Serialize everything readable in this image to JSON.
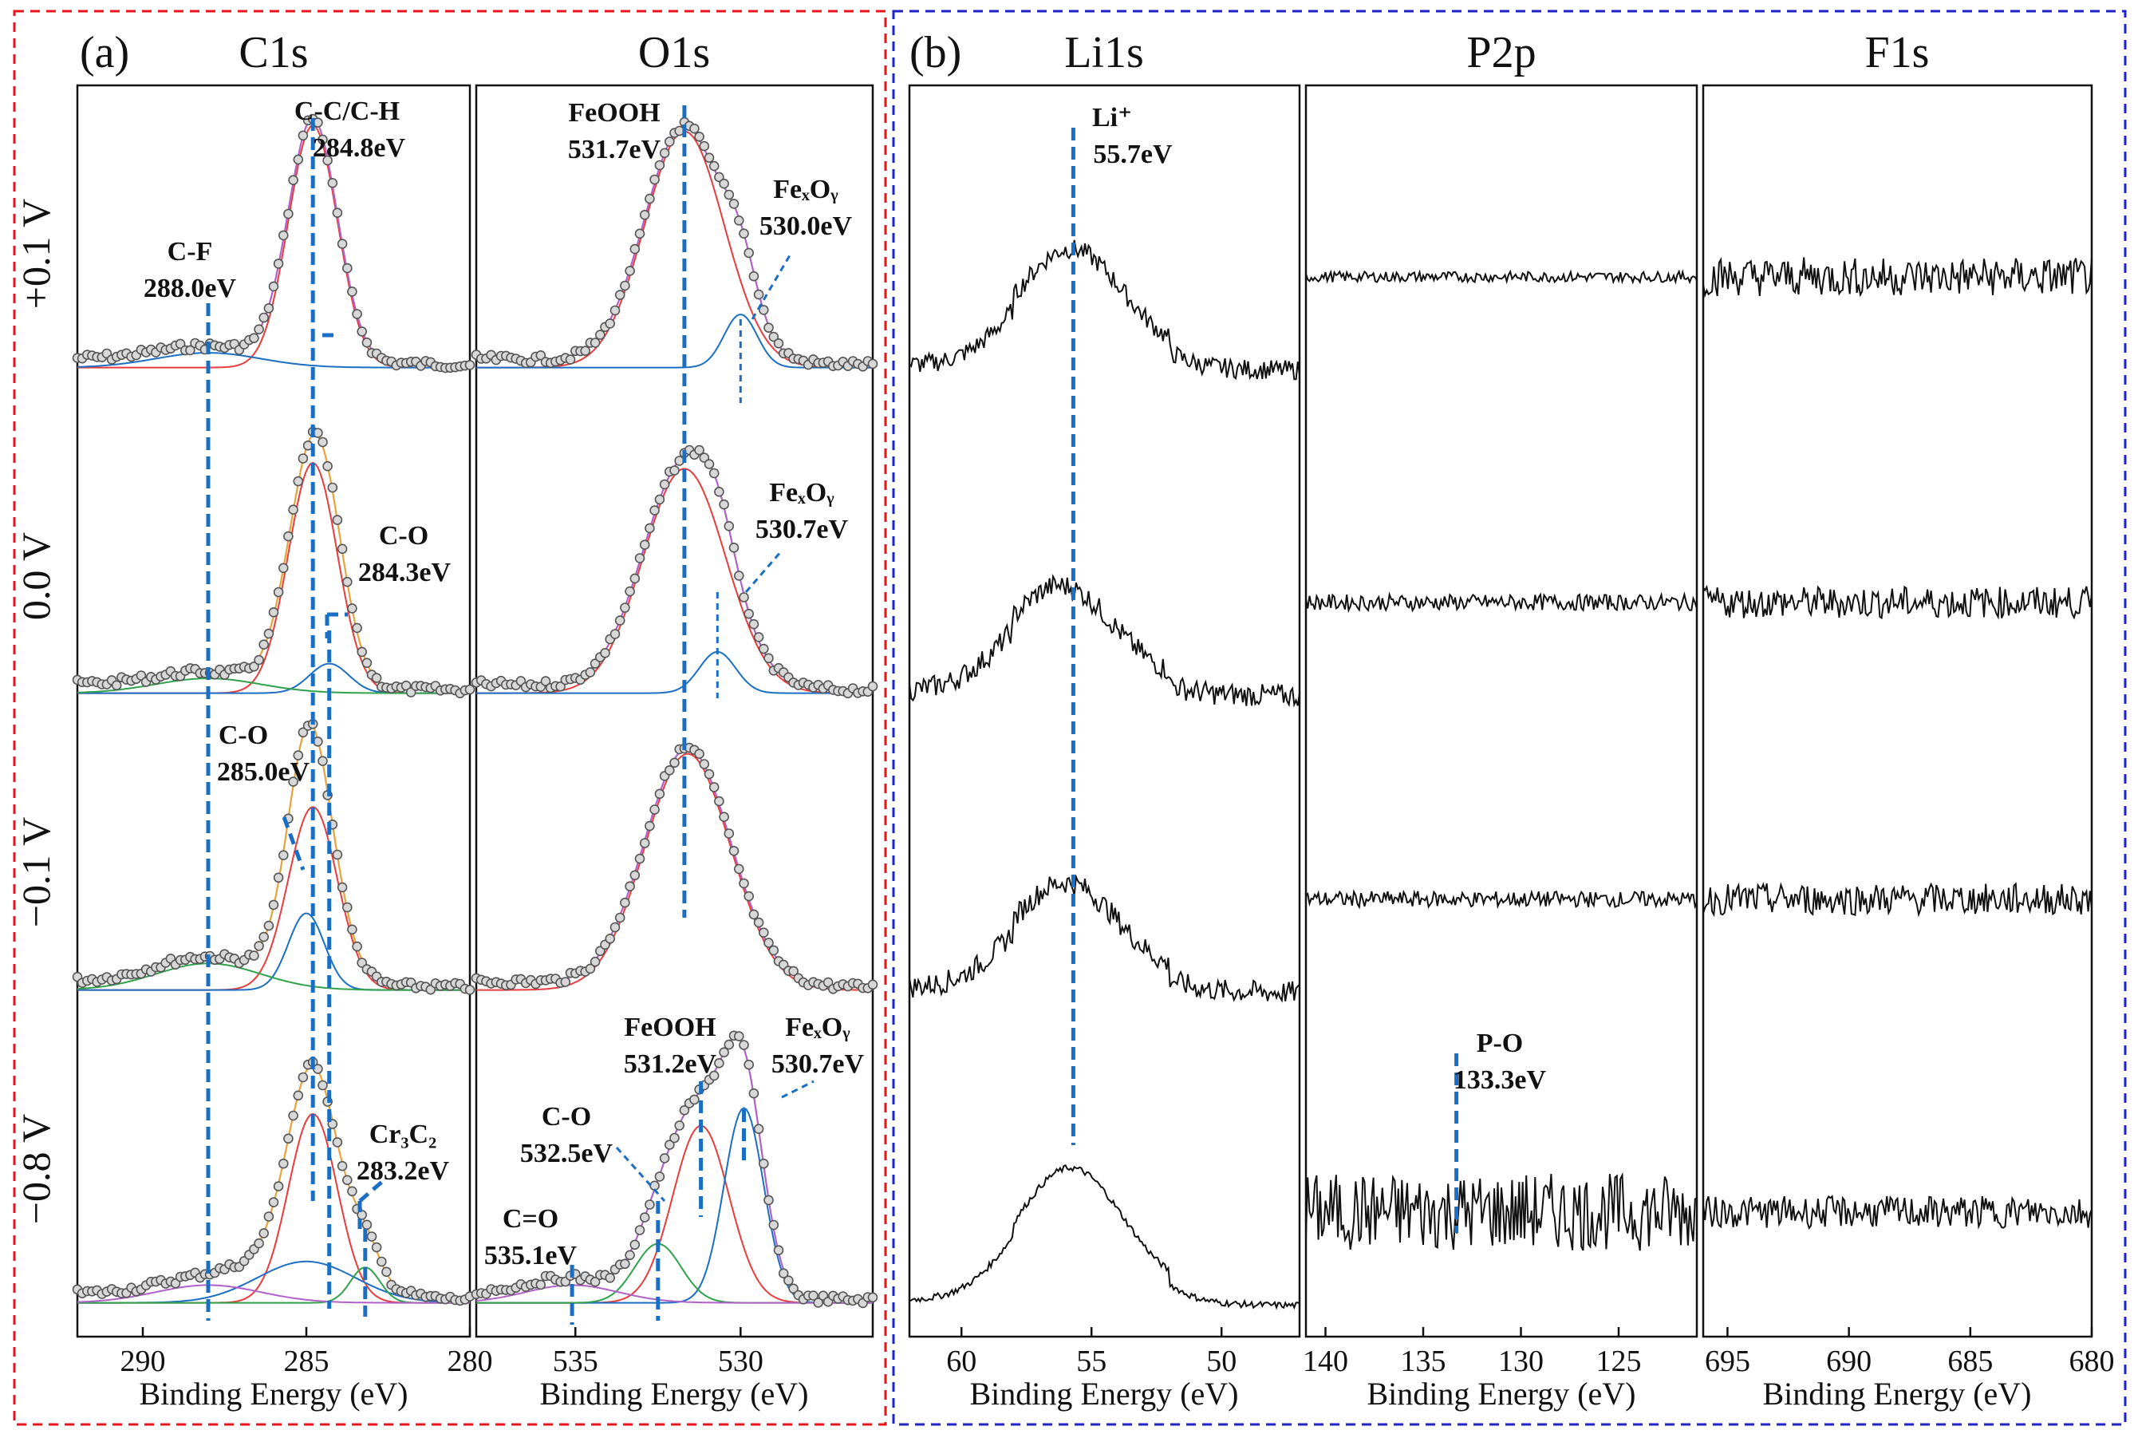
{
  "figure": {
    "panel_a_letter": "(a)",
    "panel_b_letter": "(b)",
    "border_colors": {
      "a": "#e8141c",
      "b": "#1e22c8"
    },
    "row_labels": [
      "+0.1 V",
      "0.0 V",
      "−0.1 V",
      "−0.8 V"
    ],
    "colors": {
      "guide": "#1a6fc4",
      "raw": "#555555",
      "marker_fill": "#d8d8d8",
      "envelope": "#b061c8",
      "c_main": "#e83c3c",
      "c_sub": "#1a6fc4",
      "bg": "#2fa24a",
      "orange": "#e8a23a",
      "teal": "#22a3a3",
      "black": "#111111"
    }
  },
  "chart_data": [
    {
      "type": "line",
      "id": "C1s",
      "title": "C1s",
      "xlabel": "Binding Energy (eV)",
      "xlim": [
        292,
        280
      ],
      "xticks": [
        290,
        285,
        280
      ],
      "guides": [
        288.0,
        284.8,
        284.3,
        283.2
      ],
      "peaks": [
        {
          "label": "C-C/C-H",
          "energy": "284.8eV"
        },
        {
          "label": "C-F",
          "energy": "288.0eV"
        },
        {
          "label": "C-O",
          "energy": "284.3eV"
        },
        {
          "label": "C-O",
          "energy": "285.0eV"
        },
        {
          "label": "Cr₃C₂",
          "energy": "283.2eV"
        }
      ],
      "rows": [
        {
          "potential": "+0.1 V",
          "components": [
            {
              "center": 284.8,
              "height": 0.82,
              "width": 0.75
            },
            {
              "center": 288.0,
              "height": 0.05,
              "width": 1.6
            }
          ]
        },
        {
          "potential": "0.0 V",
          "components": [
            {
              "center": 284.8,
              "height": 0.78,
              "width": 0.75
            },
            {
              "center": 284.3,
              "height": 0.1,
              "width": 0.6
            },
            {
              "center": 288.0,
              "height": 0.05,
              "width": 1.6
            }
          ]
        },
        {
          "potential": "−0.1 V",
          "components": [
            {
              "center": 284.8,
              "height": 0.62,
              "width": 0.75
            },
            {
              "center": 285.0,
              "height": 0.26,
              "width": 0.55
            },
            {
              "center": 288.0,
              "height": 0.09,
              "width": 1.6
            }
          ]
        },
        {
          "potential": "−0.8 V",
          "components": [
            {
              "center": 284.8,
              "height": 0.64,
              "width": 0.75
            },
            {
              "center": 285.0,
              "height": 0.14,
              "width": 1.5
            },
            {
              "center": 283.2,
              "height": 0.12,
              "width": 0.45
            },
            {
              "center": 288.0,
              "height": 0.06,
              "width": 1.6
            }
          ]
        }
      ]
    },
    {
      "type": "line",
      "id": "O1s",
      "title": "O1s",
      "xlabel": "Binding Energy (eV)",
      "xlim": [
        538,
        526
      ],
      "xticks": [
        535,
        530
      ],
      "guides": [
        531.7,
        530.0,
        530.7,
        531.2,
        532.5,
        535.1
      ],
      "peaks": [
        {
          "label": "FeOOH",
          "energy": "531.7eV"
        },
        {
          "label": "FeₓOᵧ",
          "energy": "530.0eV"
        },
        {
          "label": "FeₓOᵧ",
          "energy": "530.7eV"
        },
        {
          "label": "FeOOH",
          "energy": "531.2eV"
        },
        {
          "label": "FeₓOᵧ",
          "energy": "530.7eV"
        },
        {
          "label": "C-O",
          "energy": "532.5eV"
        },
        {
          "label": "C=O",
          "energy": "535.1eV"
        }
      ],
      "rows": [
        {
          "potential": "+0.1 V",
          "components": [
            {
              "center": 531.7,
              "height": 0.8,
              "width": 1.2
            },
            {
              "center": 530.0,
              "height": 0.18,
              "width": 0.5
            }
          ]
        },
        {
          "potential": "0.0 V",
          "components": [
            {
              "center": 531.7,
              "height": 0.76,
              "width": 1.25
            },
            {
              "center": 530.7,
              "height": 0.14,
              "width": 0.55
            }
          ]
        },
        {
          "potential": "−0.1 V",
          "components": [
            {
              "center": 531.6,
              "height": 0.8,
              "width": 1.3
            }
          ]
        },
        {
          "potential": "−0.8 V",
          "components": [
            {
              "center": 531.2,
              "height": 0.6,
              "width": 0.85
            },
            {
              "center": 529.9,
              "height": 0.66,
              "width": 0.6
            },
            {
              "center": 532.5,
              "height": 0.2,
              "width": 0.7
            },
            {
              "center": 535.1,
              "height": 0.06,
              "width": 1.4
            }
          ]
        }
      ]
    },
    {
      "type": "line",
      "id": "Li1s",
      "title": "Li1s",
      "xlabel": "Binding Energy (eV)",
      "xlim": [
        62,
        47
      ],
      "xticks": [
        60,
        55,
        50
      ],
      "guides": [
        55.7
      ],
      "peaks": [
        {
          "label": "Li⁺",
          "energy": "55.7eV"
        }
      ],
      "rows": [
        {
          "potential": "+0.1 V",
          "center": 55.8,
          "height": 0.65,
          "noise": 0.06
        },
        {
          "potential": "0.0 V",
          "center": 56.2,
          "height": 0.58,
          "noise": 0.07
        },
        {
          "potential": "−0.1 V",
          "center": 56.0,
          "height": 0.58,
          "noise": 0.07
        },
        {
          "potential": "−0.8 V",
          "center": 55.8,
          "height": 0.75,
          "noise": 0.02
        }
      ]
    },
    {
      "type": "line",
      "id": "P2p",
      "title": "P2p",
      "xlabel": "Binding Energy (eV)",
      "xlim": [
        141,
        121
      ],
      "xticks": [
        140,
        135,
        130,
        125
      ],
      "guides": [
        133.3
      ],
      "peaks": [
        {
          "label": "P-O",
          "energy": "133.3eV"
        }
      ],
      "rows": [
        {
          "potential": "+0.1 V",
          "noise": 0.03
        },
        {
          "potential": "0.0 V",
          "noise": 0.045
        },
        {
          "potential": "−0.1 V",
          "noise": 0.045
        },
        {
          "potential": "−0.8 V",
          "noise": 0.22
        }
      ]
    },
    {
      "type": "line",
      "id": "F1s",
      "title": "F1s",
      "xlabel": "Binding Energy (eV)",
      "xlim": [
        696,
        680
      ],
      "xticks": [
        695,
        690,
        685,
        680
      ],
      "guides": [],
      "peaks": [],
      "rows": [
        {
          "potential": "+0.1 V",
          "noise": 0.11
        },
        {
          "potential": "0.0 V",
          "noise": 0.09
        },
        {
          "potential": "−0.1 V",
          "noise": 0.09
        },
        {
          "potential": "−0.8 V",
          "noise": 0.09
        }
      ]
    }
  ]
}
